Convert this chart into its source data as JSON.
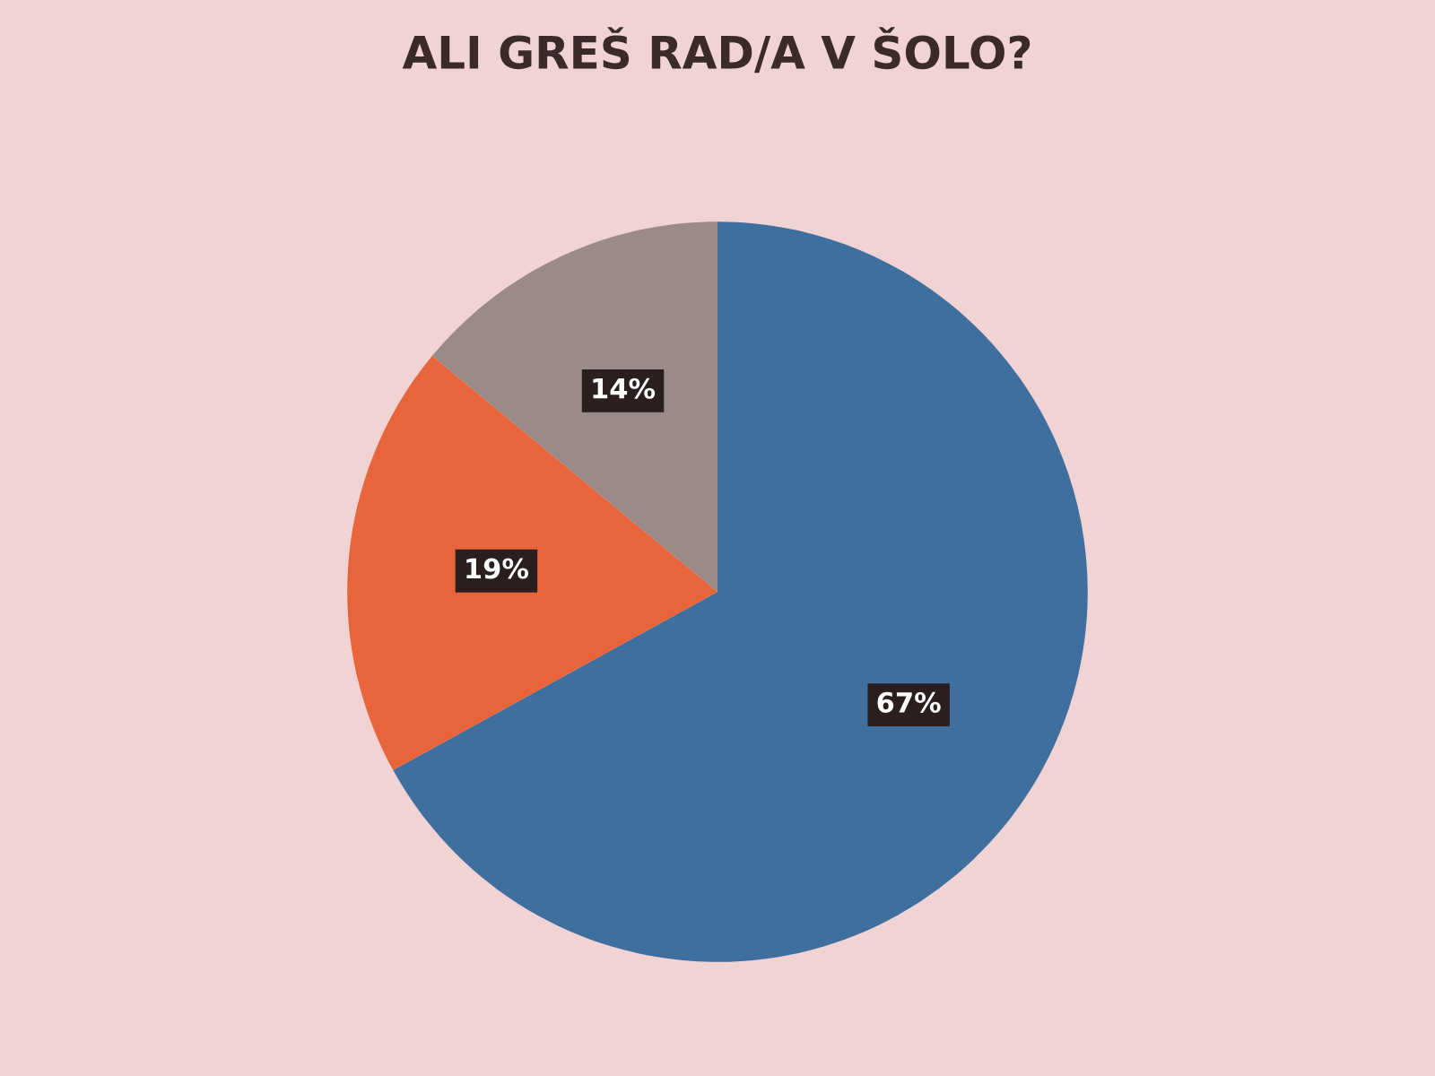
{
  "chart_data": {
    "type": "pie",
    "title": "ALI GREŠ RAD/A V ŠOLO?",
    "categories": [
      null,
      null,
      null
    ],
    "values": [
      67,
      19,
      14
    ],
    "colors": [
      "#3f6f9f",
      "#e8643a",
      "#9a8a88"
    ],
    "value_labels": [
      "67%",
      "19%",
      "14%"
    ]
  }
}
